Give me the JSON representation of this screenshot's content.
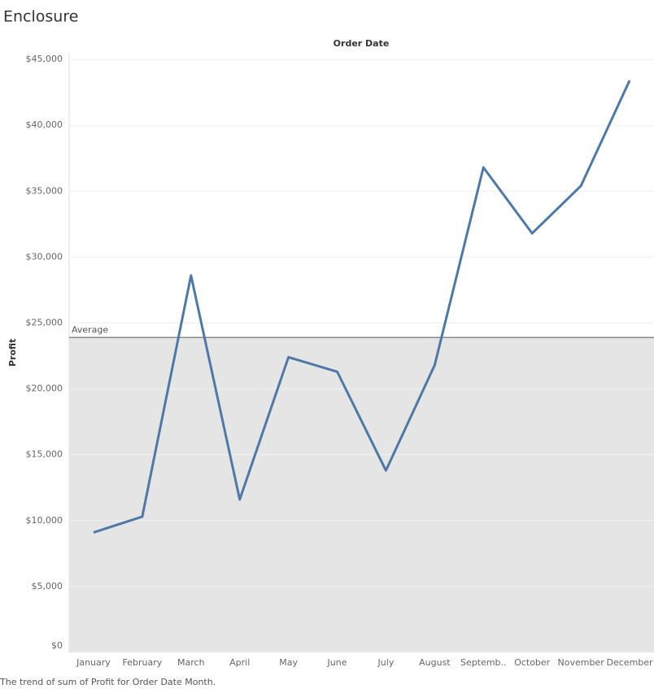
{
  "chart_data": {
    "type": "line",
    "title": "Enclosure",
    "x_label": "Order Date",
    "y_label": "Profit",
    "caption": "The trend of sum of Profit for Order Date Month.",
    "categories": [
      "January",
      "February",
      "March",
      "April",
      "May",
      "June",
      "July",
      "August",
      "Septemb..",
      "October",
      "November",
      "December"
    ],
    "series": [
      {
        "name": "Profit",
        "color": "#4e79a7",
        "values": [
          9100,
          10300,
          28600,
          11600,
          22400,
          21300,
          13800,
          21800,
          36800,
          31800,
          35400,
          43400
        ]
      }
    ],
    "reference_line": {
      "label": "Average",
      "value": 23900
    },
    "ylim": [
      0,
      45500
    ],
    "yticks": [
      {
        "value": 0,
        "label": "$0"
      },
      {
        "value": 5000,
        "label": "$5,000"
      },
      {
        "value": 10000,
        "label": "$10,000"
      },
      {
        "value": 15000,
        "label": "$15,000"
      },
      {
        "value": 20000,
        "label": "$20,000"
      },
      {
        "value": 25000,
        "label": "$25,000"
      },
      {
        "value": 30000,
        "label": "$30,000"
      },
      {
        "value": 35000,
        "label": "$35,000"
      },
      {
        "value": 40000,
        "label": "$40,000"
      },
      {
        "value": 45000,
        "label": "$45,000"
      }
    ],
    "grid": true
  }
}
